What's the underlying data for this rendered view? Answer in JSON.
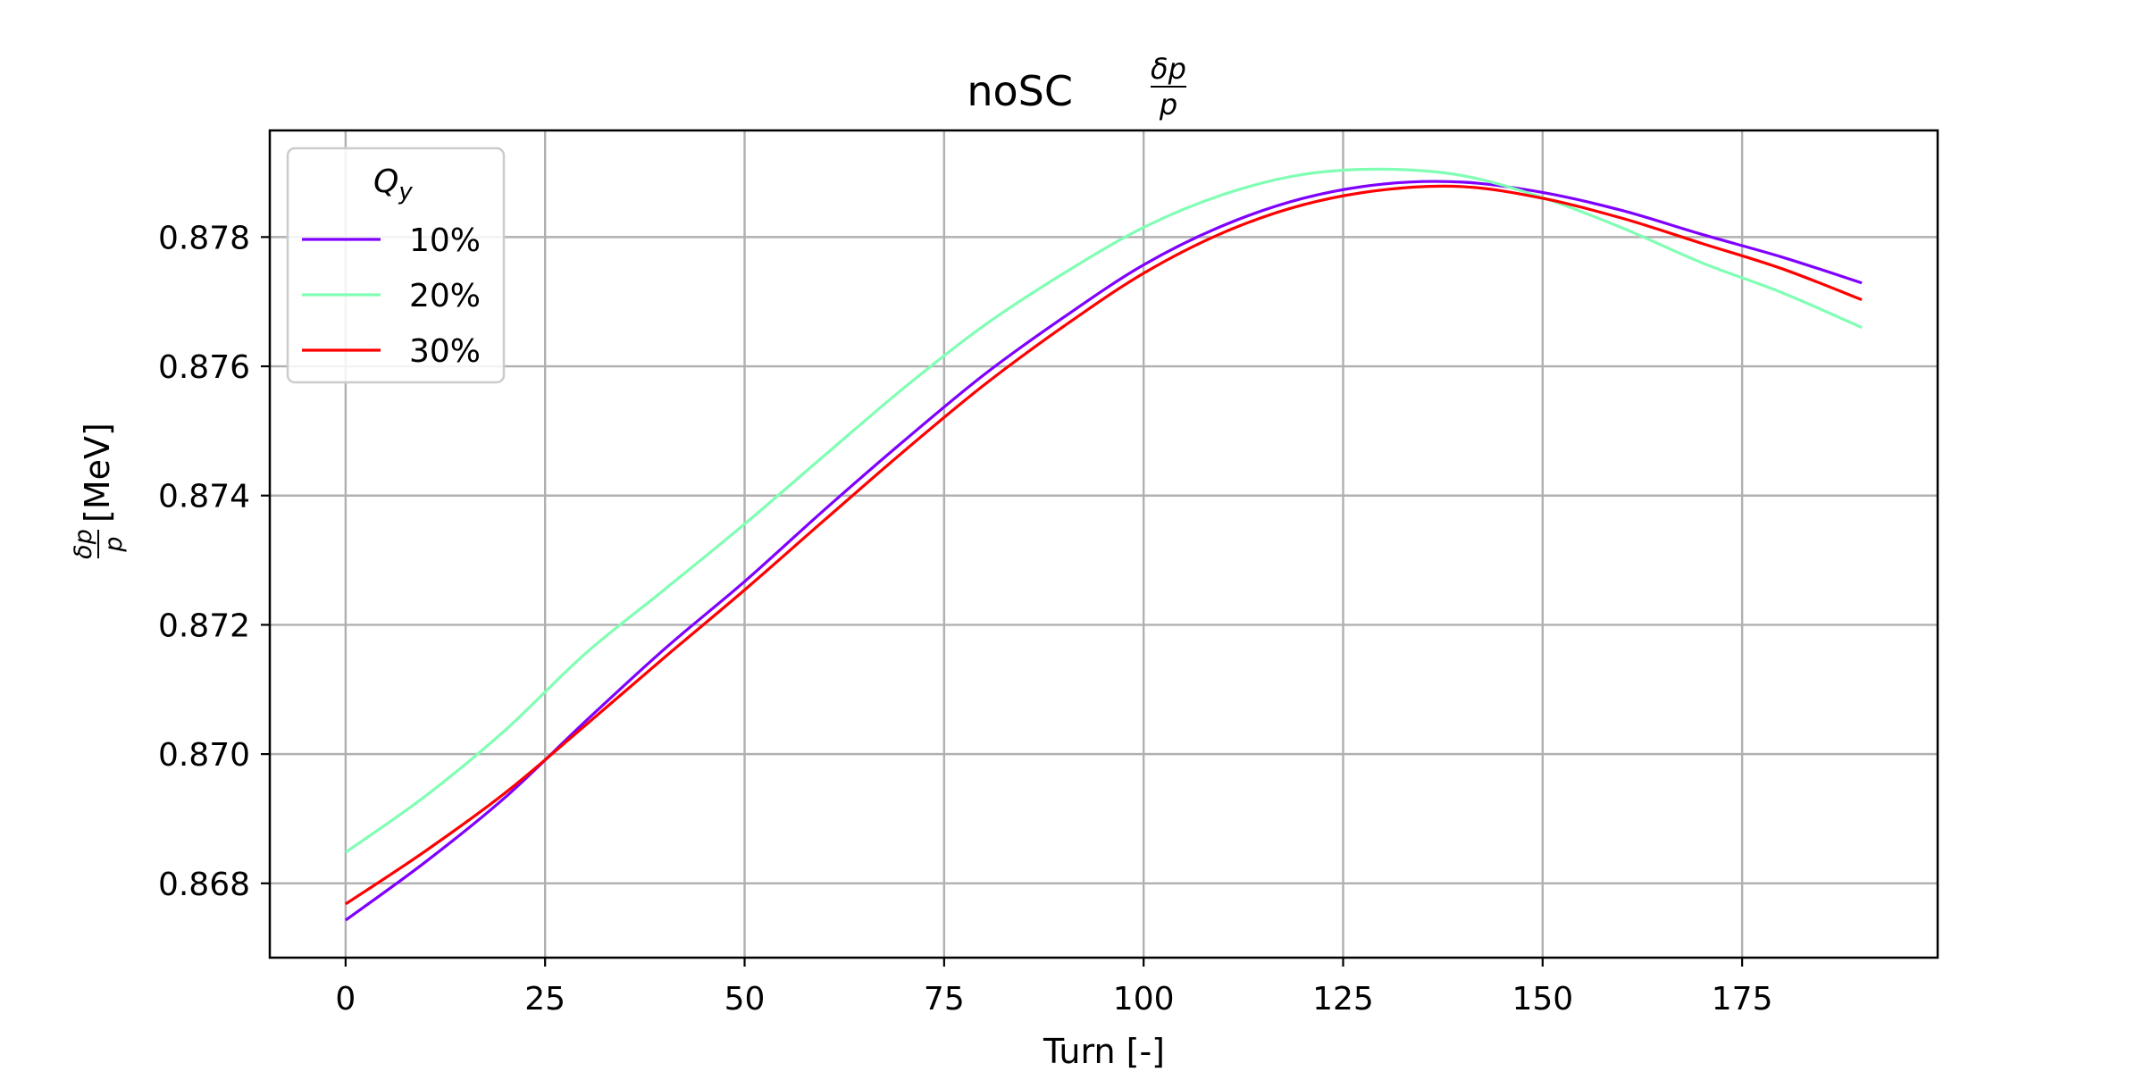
{
  "chart_data": {
    "type": "line",
    "title": "noSC",
    "title_fraction": {
      "numerator": "δp",
      "denominator": "p"
    },
    "xlabel": "Turn [-]",
    "ylabel_fraction": {
      "numerator": "δp",
      "denominator": "p"
    },
    "ylabel_unit": "[MeV]",
    "xlim": [
      -9.5,
      199.5
    ],
    "ylim": [
      0.86685,
      0.87965
    ],
    "xticks": [
      0,
      25,
      50,
      75,
      100,
      125,
      150,
      175
    ],
    "yticks": [
      0.868,
      0.87,
      0.872,
      0.874,
      0.876,
      0.878
    ],
    "ytick_labels": [
      "0.868",
      "0.870",
      "0.872",
      "0.874",
      "0.876",
      "0.878"
    ],
    "grid": true,
    "legend": {
      "title": "Q",
      "title_subscript": "y",
      "placement": "top-left"
    },
    "x": [
      0,
      10,
      20,
      30,
      40,
      50,
      60,
      70,
      80,
      90,
      100,
      110,
      120,
      130,
      140,
      150,
      160,
      170,
      180,
      190
    ],
    "series": [
      {
        "name": "10%",
        "color": "#7f00ff",
        "values": [
          0.86743,
          0.86833,
          0.86933,
          0.8705,
          0.87163,
          0.87267,
          0.87378,
          0.87485,
          0.87587,
          0.87676,
          0.87757,
          0.87818,
          0.8786,
          0.87882,
          0.87885,
          0.87869,
          0.87841,
          0.87804,
          0.87769,
          0.87729
        ]
      },
      {
        "name": "20%",
        "color": "#80ffb4",
        "values": [
          0.86848,
          0.86935,
          0.87037,
          0.87155,
          0.87255,
          0.87356,
          0.87462,
          0.87567,
          0.87663,
          0.87744,
          0.87815,
          0.87866,
          0.87897,
          0.87905,
          0.87895,
          0.87861,
          0.87814,
          0.8776,
          0.87714,
          0.8766
        ]
      },
      {
        "name": "30%",
        "color": "#ff0000",
        "values": [
          0.86768,
          0.8685,
          0.8694,
          0.87044,
          0.8715,
          0.87254,
          0.87362,
          0.87469,
          0.87571,
          0.87662,
          0.87744,
          0.87807,
          0.8785,
          0.87873,
          0.87878,
          0.8786,
          0.87829,
          0.8779,
          0.87751,
          0.87703
        ]
      }
    ]
  }
}
